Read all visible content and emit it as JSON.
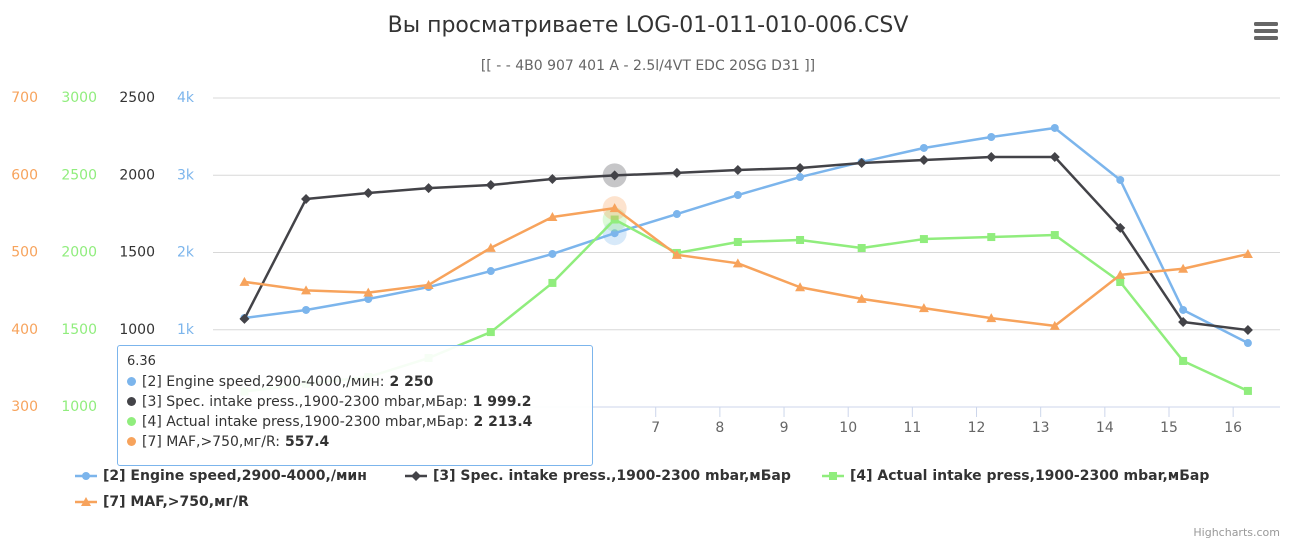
{
  "chart_data": {
    "type": "line",
    "title": "Вы просматриваете LOG-01-011-010-006.CSV",
    "subtitle": "[[ - - 4B0 907 401 A - 2.5l/4VT EDC 20SG D31 ]]",
    "x": [
      0.59,
      1.55,
      2.52,
      3.46,
      4.43,
      5.39,
      6.36,
      7.33,
      8.28,
      9.25,
      10.21,
      11.18,
      12.23,
      13.22,
      14.24,
      15.22,
      16.23
    ],
    "xlim": [
      0.1,
      16.73
    ],
    "xticks": [
      7,
      8,
      9,
      10,
      11,
      12,
      13,
      14,
      15,
      16
    ],
    "ylim": [
      0,
      4000
    ],
    "yticks": [
      {
        "value": 1000,
        "label": "1k"
      },
      {
        "value": 2000,
        "label": "2k"
      },
      {
        "value": 3000,
        "label": "3k"
      },
      {
        "value": 4000,
        "label": "4k"
      }
    ],
    "y2lim": [
      500,
      2500
    ],
    "y2ticks": [
      1000,
      1500,
      2000,
      2500
    ],
    "y3lim": [
      1000,
      3000
    ],
    "y3ticks": [
      1000,
      1500,
      2000,
      2500,
      3000
    ],
    "y4lim": [
      300,
      700
    ],
    "y4ticks": [
      300,
      400,
      500,
      600,
      700
    ],
    "grid": true,
    "series": [
      {
        "name": "[2] Engine speed,2900-4000,/мин",
        "color": "#7cb5ec",
        "marker": "circle",
        "axis": "y",
        "values": [
          1152,
          1256,
          1398,
          1553,
          1760,
          1981,
          2250,
          2498,
          2744,
          2977,
          3172,
          3353,
          3495,
          3612,
          2939,
          1256,
          828
        ]
      },
      {
        "name": "[3] Spec. intake press.,1900-2300 mbar,мБар",
        "color": "#434348",
        "marker": "diamond",
        "axis": "y2",
        "values": [
          1070,
          1846,
          1885,
          1917,
          1937,
          1976,
          1999.2,
          2015,
          2034,
          2047,
          2079,
          2099,
          2118,
          2118,
          1659,
          1050,
          998
        ]
      },
      {
        "name": "[4] Actual intake press,1900-2300 mbar,мБар",
        "color": "#90ed7d",
        "marker": "square",
        "axis": "y3",
        "values": [
          1100,
          1150,
          1194,
          1317,
          1485,
          1803,
          2213.4,
          1997,
          2068,
          2081,
          2029,
          2087,
          2100,
          2113,
          1809,
          1298,
          1104
        ]
      },
      {
        "name": "[7] MAF,>750,мг/R",
        "color": "#f7a35c",
        "marker": "triangle",
        "axis": "y4",
        "values": [
          462,
          451,
          448,
          458,
          506,
          546,
          557.4,
          497,
          486,
          455,
          440,
          428,
          415,
          405,
          471,
          479,
          498
        ]
      }
    ],
    "tooltip": {
      "x": 6.36,
      "labels": [
        "[2] Engine speed,2900-4000,/мин:",
        "[3] Spec. intake press.,1900-2300 mbar,мБар:",
        "[4] Actual intake press,1900-2300 mbar,мБар:",
        "[7] MAF,>750,мг/R:"
      ],
      "values": [
        2250,
        1999.2,
        2213.4,
        557.4
      ],
      "value_labels": [
        "2 250",
        "1 999.2",
        "2 213.4",
        "557.4"
      ]
    },
    "credits": "Highcharts.com"
  }
}
